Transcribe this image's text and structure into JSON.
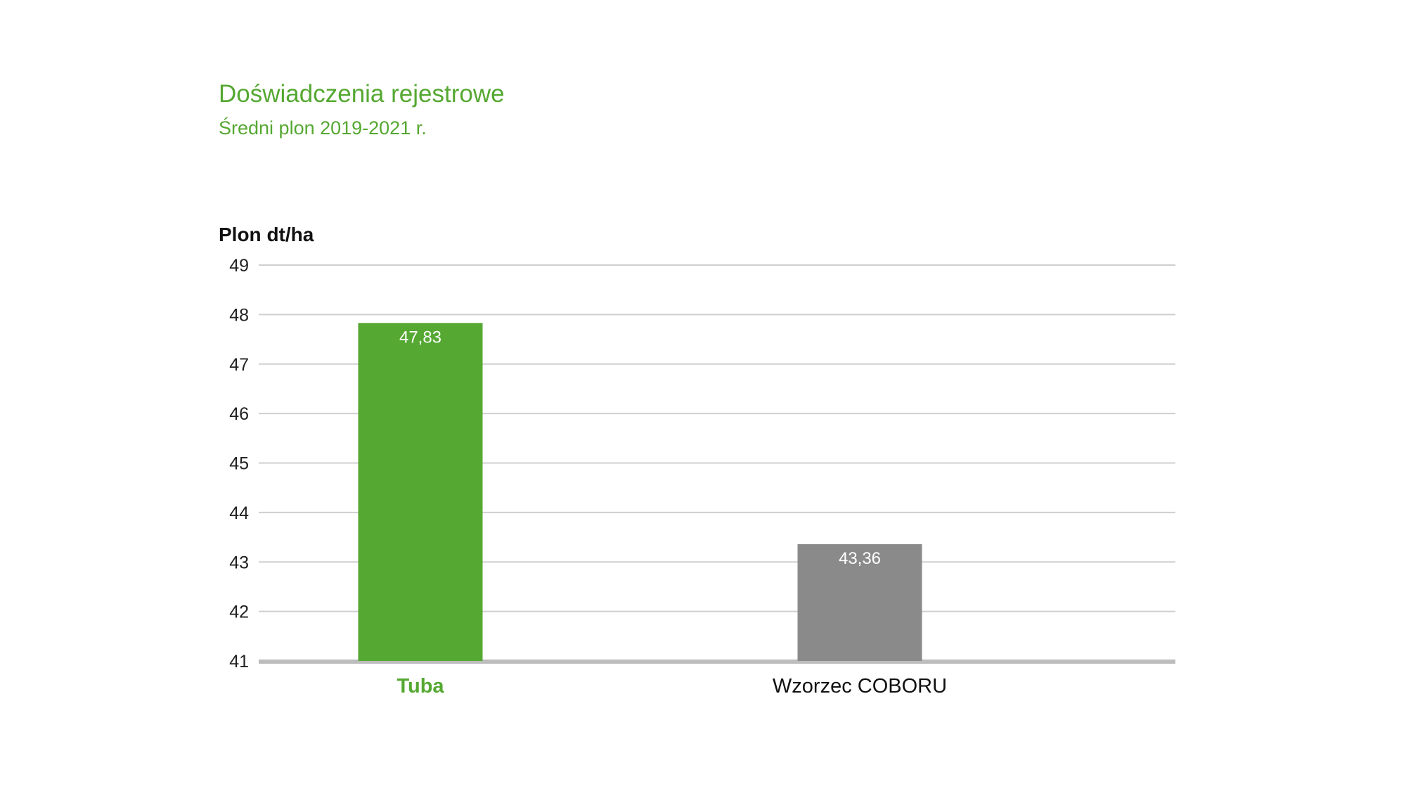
{
  "chart_data": {
    "type": "bar",
    "title": "Doświadczenia rejestrowe",
    "subtitle": "Średni plon 2019-2021 r.",
    "ylabel": "Plon dt/ha",
    "xlabel": "",
    "ylim": [
      41,
      49
    ],
    "yticks": [
      "49",
      "48",
      "47",
      "46",
      "45",
      "44",
      "43",
      "42",
      "41"
    ],
    "ytick_values": [
      49,
      48,
      47,
      46,
      45,
      44,
      43,
      42,
      41
    ],
    "grid": true,
    "legend": "none",
    "categories": [
      "Tuba",
      "Wzorzec COBORU"
    ],
    "values": [
      47.83,
      43.36
    ],
    "value_labels": [
      "47,83",
      "43,36"
    ],
    "bar_colors": [
      "#55a832",
      "#8a8a8a"
    ],
    "category_label_colors": [
      "#55a832",
      "#111111"
    ],
    "category_label_bold": [
      true,
      false
    ]
  }
}
